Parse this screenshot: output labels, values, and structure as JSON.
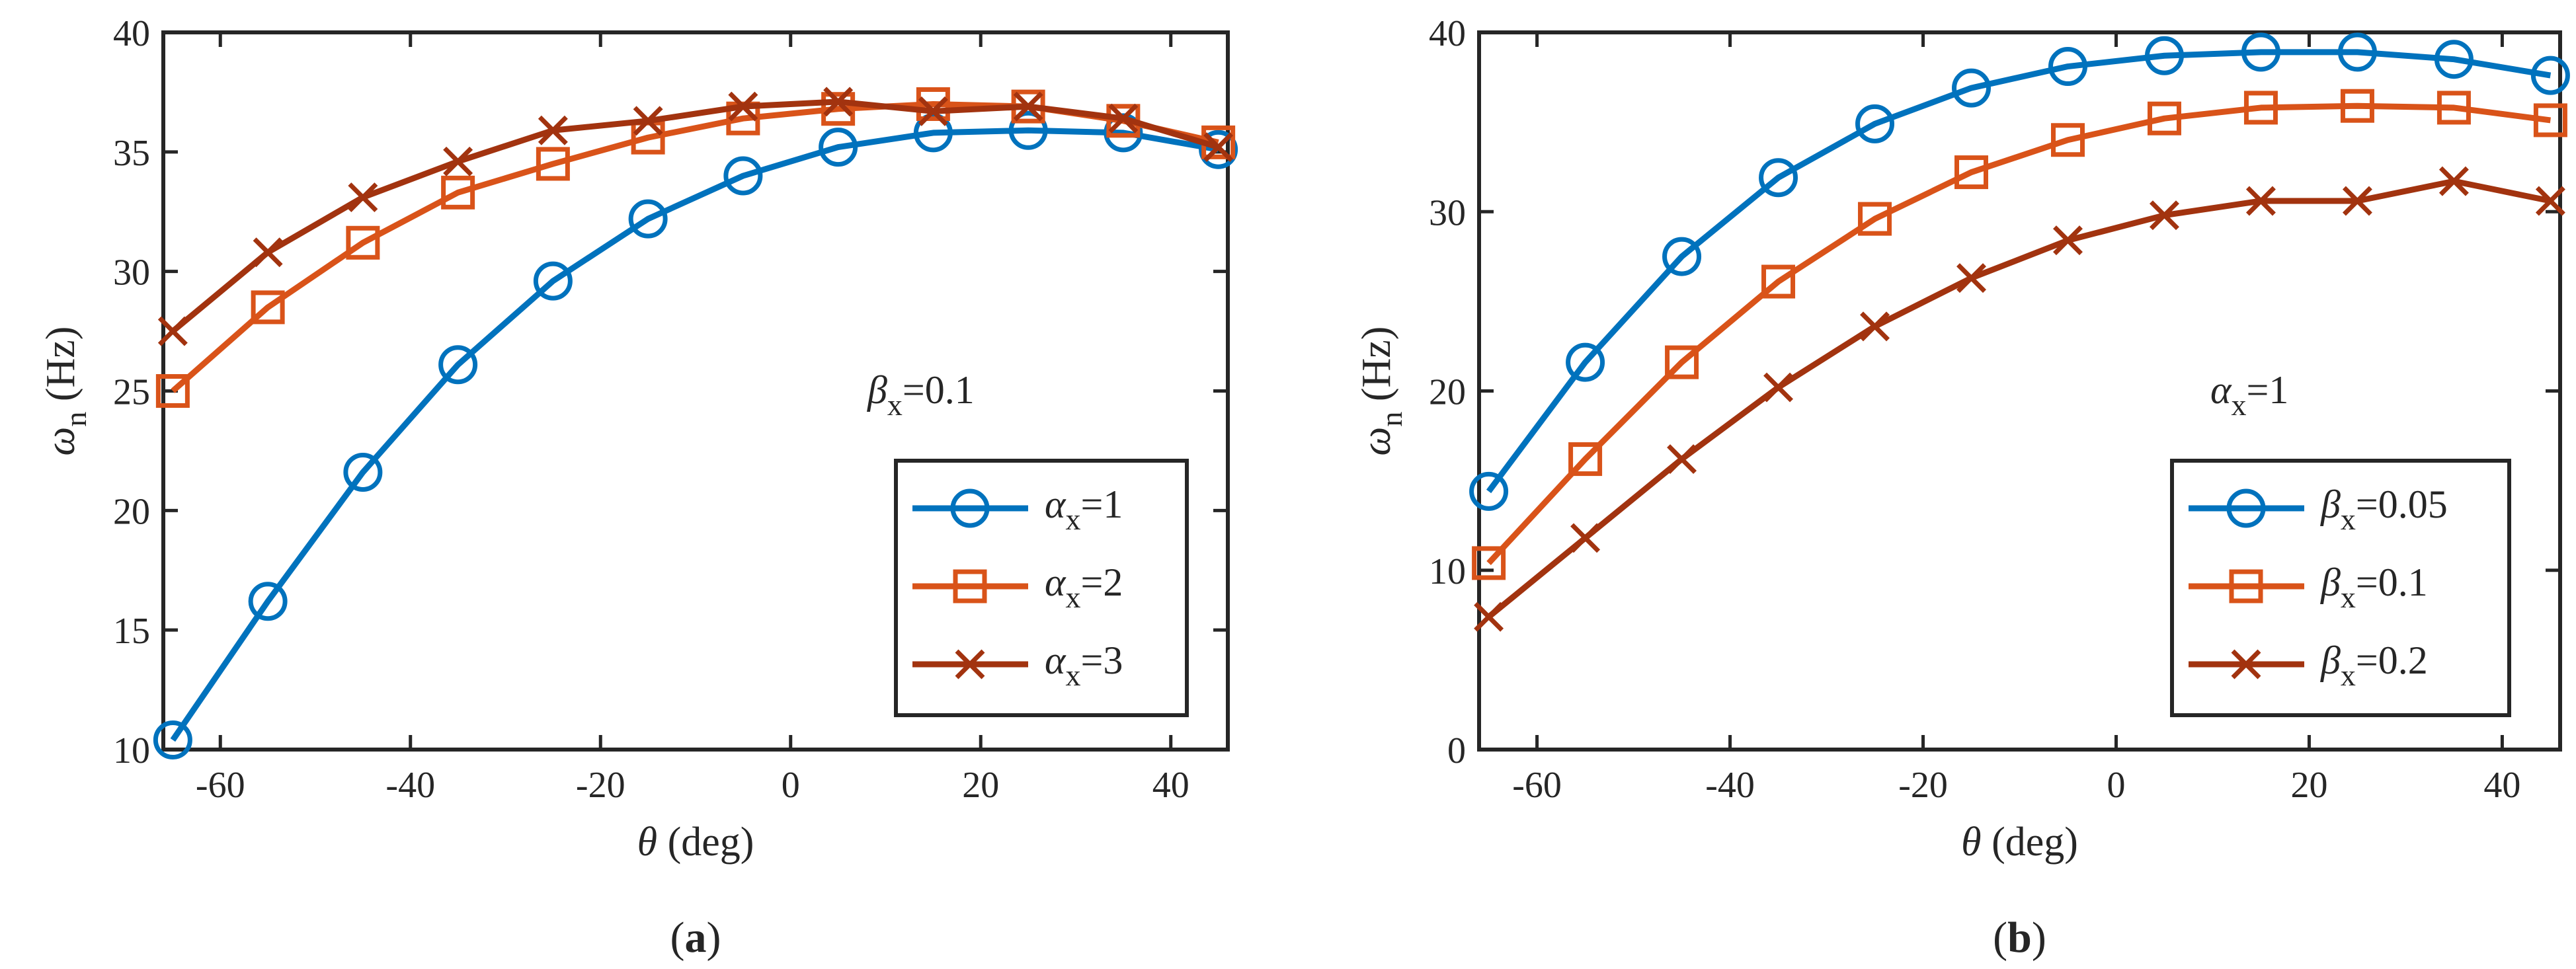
{
  "colors": {
    "series1": "#0072BD",
    "series2": "#D95319",
    "series3": "#A2330F",
    "axis": "#262626"
  },
  "chart_data": [
    {
      "type": "line",
      "caption": {
        "pre": "(",
        "letter": "a",
        "post": ")"
      },
      "xlabel": {
        "symbol": "θ",
        "text": " (deg)"
      },
      "ylabel": {
        "symbol": "ω",
        "sub": "n",
        "text": " (Hz)"
      },
      "xlim": [
        -66,
        46
      ],
      "ylim": [
        10,
        40
      ],
      "xticks": [
        -60,
        -40,
        -20,
        0,
        20,
        40
      ],
      "xtick_labels": [
        "-60",
        "-40",
        "-20",
        "0",
        "20",
        "40"
      ],
      "yticks": [
        10,
        15,
        20,
        25,
        30,
        35,
        40
      ],
      "ytick_labels": [
        "10",
        "15",
        "20",
        "25",
        "30",
        "35",
        "40"
      ],
      "annotation": {
        "symbol": "β",
        "sub": "x",
        "text": "=0.1"
      },
      "legend_location": "lower-right",
      "x": [
        -65,
        -55,
        -45,
        -35,
        -25,
        -15,
        -5,
        5,
        15,
        25,
        35,
        45
      ],
      "series": [
        {
          "symbol": "α",
          "sub": "x",
          "value": "=1",
          "marker": "circle",
          "values": [
            10.4,
            16.2,
            21.6,
            26.1,
            29.6,
            32.2,
            34.0,
            35.2,
            35.8,
            35.9,
            35.8,
            35.1
          ]
        },
        {
          "symbol": "α",
          "sub": "x",
          "value": "=2",
          "marker": "square",
          "values": [
            25.0,
            28.5,
            31.2,
            33.3,
            34.5,
            35.6,
            36.4,
            36.8,
            37.0,
            36.9,
            36.3,
            35.4
          ]
        },
        {
          "symbol": "α",
          "sub": "x",
          "value": "=3",
          "marker": "x",
          "values": [
            27.5,
            30.8,
            33.1,
            34.6,
            35.9,
            36.3,
            36.9,
            37.1,
            36.7,
            36.9,
            36.4,
            35.2
          ]
        }
      ]
    },
    {
      "type": "line",
      "caption": {
        "pre": "(",
        "letter": "b",
        "post": ")"
      },
      "xlabel": {
        "symbol": "θ",
        "text": " (deg)"
      },
      "ylabel": {
        "symbol": "ω",
        "sub": "n",
        "text": " (Hz)"
      },
      "xlim": [
        -66,
        46
      ],
      "ylim": [
        0,
        40
      ],
      "xticks": [
        -60,
        -40,
        -20,
        0,
        20,
        40
      ],
      "xtick_labels": [
        "-60",
        "-40",
        "-20",
        "0",
        "20",
        "40"
      ],
      "yticks": [
        0,
        10,
        20,
        30,
        40
      ],
      "ytick_labels": [
        "0",
        "10",
        "20",
        "30",
        "40"
      ],
      "annotation": {
        "symbol": "α",
        "sub": "x",
        "text": "=1"
      },
      "legend_location": "lower-right",
      "x": [
        -65,
        -55,
        -45,
        -35,
        -25,
        -15,
        -5,
        5,
        15,
        25,
        35,
        45
      ],
      "series": [
        {
          "symbol": "β",
          "sub": "x",
          "value": "=0.05",
          "marker": "circle",
          "values": [
            14.4,
            21.6,
            27.5,
            31.9,
            34.9,
            36.9,
            38.1,
            38.7,
            38.9,
            38.9,
            38.5,
            37.6
          ]
        },
        {
          "symbol": "β",
          "sub": "x",
          "value": "=0.1",
          "marker": "square",
          "values": [
            10.4,
            16.2,
            21.6,
            26.1,
            29.6,
            32.2,
            34.0,
            35.2,
            35.8,
            35.9,
            35.8,
            35.1
          ]
        },
        {
          "symbol": "β",
          "sub": "x",
          "value": "=0.2",
          "marker": "x",
          "values": [
            7.4,
            11.8,
            16.2,
            20.2,
            23.6,
            26.3,
            28.4,
            29.8,
            30.6,
            30.6,
            31.7,
            30.6
          ]
        }
      ]
    }
  ]
}
